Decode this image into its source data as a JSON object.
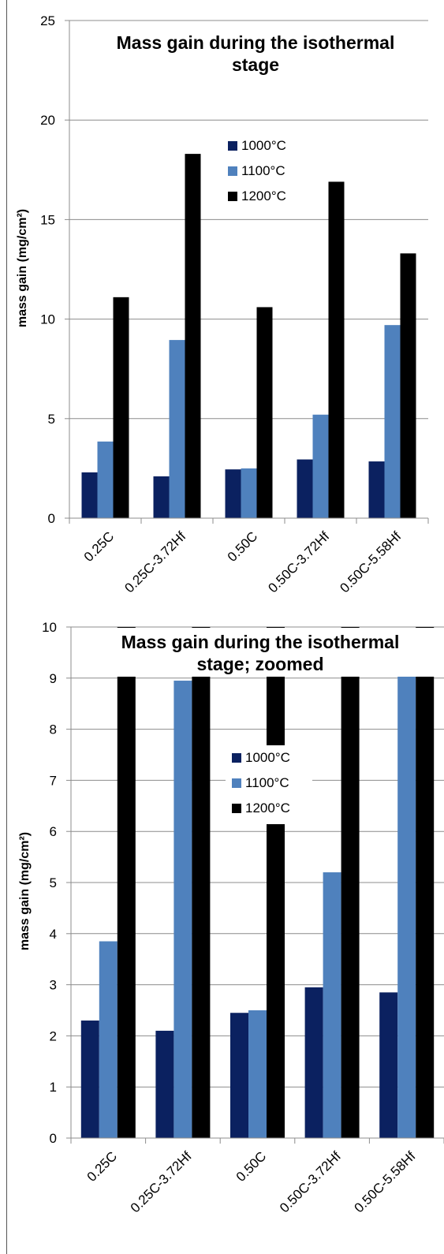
{
  "colors": {
    "1000C": "#0b2160",
    "1100C": "#4f81bd",
    "1200C": "#000000",
    "grid": "#8c8c8c",
    "axis": "#8c8c8c"
  },
  "chart_data": [
    {
      "type": "bar",
      "title": "Mass gain during the isothermal stage",
      "title_lines": [
        "Mass gain during the isothermal",
        "stage"
      ],
      "ylabel": "mass gain (mg/cm²)",
      "xlabel": "",
      "ylim": [
        0,
        25
      ],
      "yticks": [
        0,
        5,
        10,
        15,
        20,
        25
      ],
      "grid": true,
      "legend_position": "top-right",
      "categories": [
        "0.25C",
        "0.25C-3.72Hf",
        "0.50C",
        "0.50C-3.72Hf",
        "0.50C-5.58Hf"
      ],
      "series": [
        {
          "name": "1000°C",
          "color_key": "1000C",
          "values": [
            2.3,
            2.1,
            2.45,
            2.95,
            2.85
          ]
        },
        {
          "name": "1100°C",
          "color_key": "1100C",
          "values": [
            3.85,
            8.95,
            2.5,
            5.2,
            9.7
          ]
        },
        {
          "name": "1200°C",
          "color_key": "1200C",
          "values": [
            11.1,
            18.3,
            10.6,
            16.9,
            13.3
          ]
        }
      ]
    },
    {
      "type": "bar",
      "title": "Mass gain during the isothermal stage; zoomed",
      "title_lines": [
        "Mass gain during the isothermal",
        "stage; zoomed"
      ],
      "ylabel": "mass gain (mg/cm²)",
      "xlabel": "",
      "ylim": [
        0,
        10
      ],
      "yticks": [
        0,
        1,
        2,
        3,
        4,
        5,
        6,
        7,
        8,
        9,
        10
      ],
      "grid": true,
      "legend_position": "center",
      "categories": [
        "0.25C",
        "0.25C-3.72Hf",
        "0.50C",
        "0.50C-3.72Hf",
        "0.50C-5.58Hf"
      ],
      "series": [
        {
          "name": "1000°C",
          "color_key": "1000C",
          "values": [
            2.3,
            2.1,
            2.45,
            2.95,
            2.85
          ]
        },
        {
          "name": "1100°C",
          "color_key": "1100C",
          "values": [
            3.85,
            8.95,
            2.5,
            5.2,
            9.7
          ]
        },
        {
          "name": "1200°C",
          "color_key": "1200C",
          "values": [
            11.1,
            18.3,
            10.6,
            16.9,
            13.3
          ]
        }
      ]
    }
  ]
}
